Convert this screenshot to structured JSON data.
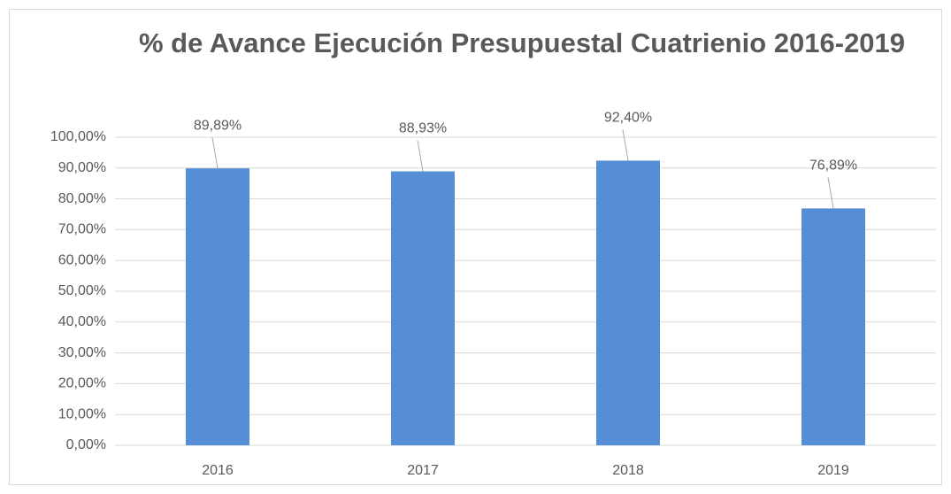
{
  "chart_data": {
    "type": "bar",
    "title": "% de Avance Ejecución Presupuestal Cuatrienio 2016-2019",
    "categories": [
      "2016",
      "2017",
      "2018",
      "2019"
    ],
    "values": [
      89.89,
      88.93,
      92.4,
      76.89
    ],
    "value_labels": [
      "89,89%",
      "88,93%",
      "92,40%",
      "76,89%"
    ],
    "color": "#558ed5",
    "ylim": [
      0,
      100
    ],
    "yticks": [
      {
        "value": 0,
        "label": "0,00%"
      },
      {
        "value": 10,
        "label": "10,00%"
      },
      {
        "value": 20,
        "label": "20,00%"
      },
      {
        "value": 30,
        "label": "30,00%"
      },
      {
        "value": 40,
        "label": "40,00%"
      },
      {
        "value": 50,
        "label": "50,00%"
      },
      {
        "value": 60,
        "label": "60,00%"
      },
      {
        "value": 70,
        "label": "70,00%"
      },
      {
        "value": 80,
        "label": "80,00%"
      },
      {
        "value": 90,
        "label": "90,00%"
      },
      {
        "value": 100,
        "label": "100,00%"
      }
    ],
    "grid": true
  }
}
